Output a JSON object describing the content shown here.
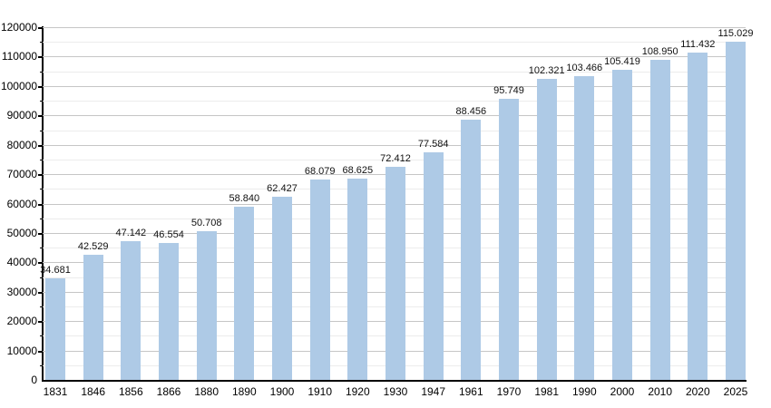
{
  "chart_data": {
    "type": "bar",
    "title": "",
    "xlabel": "",
    "ylabel": "",
    "categories": [
      "1831",
      "1846",
      "1856",
      "1866",
      "1880",
      "1890",
      "1900",
      "1910",
      "1920",
      "1930",
      "1947",
      "1961",
      "1970",
      "1981",
      "1990",
      "2000",
      "2010",
      "2020",
      "2025"
    ],
    "values": [
      34681,
      42529,
      47142,
      46554,
      50708,
      58840,
      62427,
      68079,
      68625,
      72412,
      77584,
      88456,
      95749,
      102321,
      103466,
      105419,
      108950,
      111432,
      115029
    ],
    "value_labels": [
      "34.681",
      "42.529",
      "47.142",
      "46.554",
      "50.708",
      "58.840",
      "62.427",
      "68.079",
      "68.625",
      "72.412",
      "77.584",
      "88.456",
      "95.749",
      "102.321",
      "103.466",
      "105.419",
      "108.950",
      "111.432",
      "115.029"
    ],
    "ylim": [
      0,
      120000
    ],
    "y_major_step": 10000,
    "y_minor_step": 5000,
    "y_tick_labels": [
      "0",
      "10000",
      "20000",
      "30000",
      "40000",
      "50000",
      "60000",
      "70000",
      "80000",
      "90000",
      "100000",
      "110000",
      "120000"
    ],
    "grid": true,
    "legend": "none",
    "colors": {
      "bar_fill": "#AECAE6",
      "major_gridline": "#C6C6C6",
      "minor_gridline": "#ECECEC",
      "axis": "#000000",
      "text": "#000000",
      "background": "#FFFFFF"
    }
  }
}
